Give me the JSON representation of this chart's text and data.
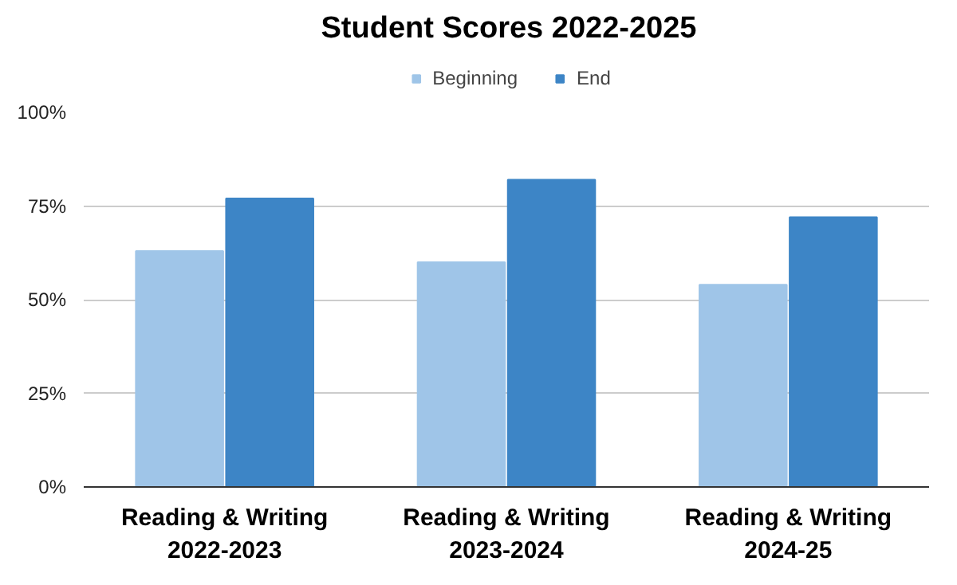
{
  "chart_data": {
    "type": "bar",
    "title": "Student Scores 2022-2025",
    "categories": [
      "Reading & Writing\n2022-2023",
      "Reading & Writing\n2023-2024",
      "Reading & Writing\n2024-25"
    ],
    "series": [
      {
        "name": "Beginning",
        "color": "#9fc5e8",
        "values": [
          63,
          60,
          54
        ]
      },
      {
        "name": "End",
        "color": "#3d85c6",
        "values": [
          77,
          82,
          72
        ]
      }
    ],
    "ylim": [
      0,
      100
    ],
    "yticks": [
      {
        "value": 0,
        "label": "0%"
      },
      {
        "value": 25,
        "label": "25%"
      },
      {
        "value": 50,
        "label": "50%"
      },
      {
        "value": 75,
        "label": "75%"
      },
      {
        "value": 100,
        "label": "100%"
      }
    ],
    "grid": "y",
    "legend": "top"
  }
}
